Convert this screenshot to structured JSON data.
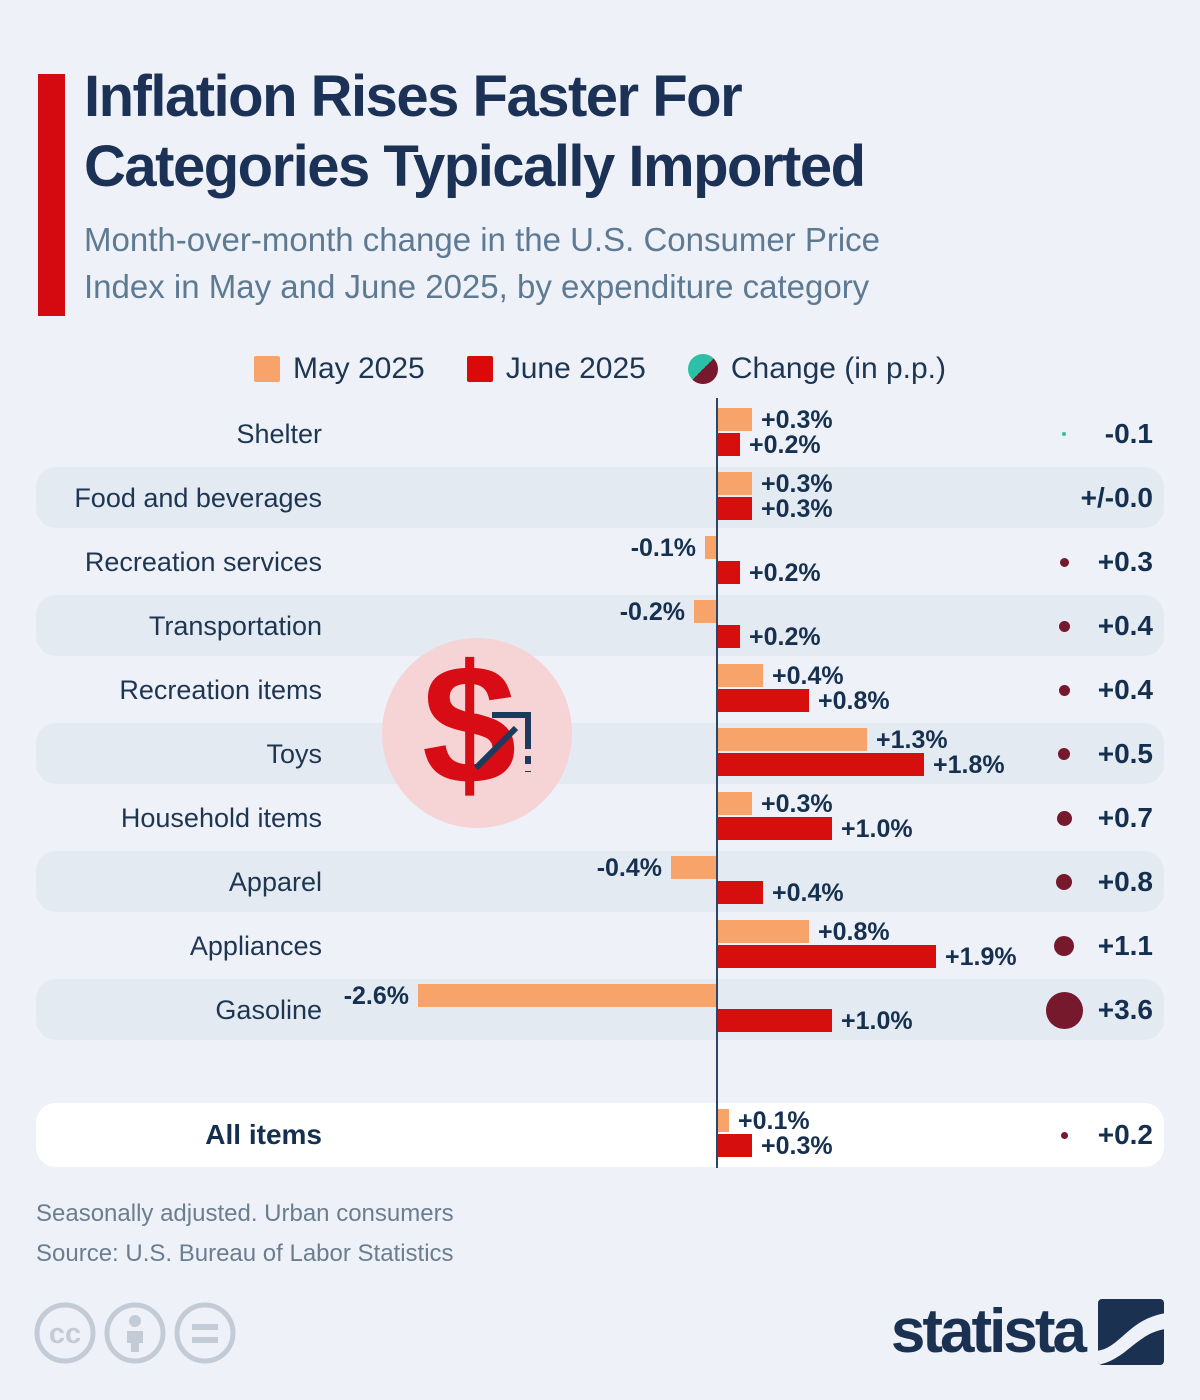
{
  "header": {
    "title_line1": "Inflation Rises Faster For",
    "title_line2": "Categories Typically Imported",
    "subtitle_line1": "Month-over-month change in the U.S. Consumer Price",
    "subtitle_line2": "Index in May and June 2025, by expenditure category"
  },
  "legend": [
    {
      "label": "May 2025",
      "color": "#f7a369",
      "swatch": "square"
    },
    {
      "label": "June 2025",
      "color": "#db0a0a",
      "swatch": "square"
    },
    {
      "label": "Change (in p.p.)",
      "color_negative": "#2cc0a6",
      "color_positive": "#76192c",
      "swatch": "split-circle"
    }
  ],
  "chart_data": {
    "type": "bar",
    "orientation": "horizontal-diverging",
    "unit": "% month-over-month change",
    "series": [
      "May 2025",
      "June 2025"
    ],
    "legend_position": "top-center",
    "x_axis": {
      "zero_line": true,
      "range": [
        -2.8,
        2.0
      ],
      "gridlines": false
    },
    "categories": [
      "Shelter",
      "Food and beverages",
      "Recreation services",
      "Transportation",
      "Recreation items",
      "Toys",
      "Household items",
      "Apparel",
      "Appliances",
      "Gasoline",
      "All items"
    ],
    "rows": [
      {
        "category": "Shelter",
        "may": 0.3,
        "may_label": "+0.3%",
        "june": 0.2,
        "june_label": "+0.2%",
        "change": -0.1,
        "change_label": "-0.1",
        "banded": false,
        "bold": false
      },
      {
        "category": "Food and beverages",
        "may": 0.3,
        "may_label": "+0.3%",
        "june": 0.3,
        "june_label": "+0.3%",
        "change": 0.0,
        "change_label": "+/-0.0",
        "banded": true,
        "bold": false
      },
      {
        "category": "Recreation services",
        "may": -0.1,
        "may_label": "-0.1%",
        "june": 0.2,
        "june_label": "+0.2%",
        "change": 0.3,
        "change_label": "+0.3",
        "banded": false,
        "bold": false
      },
      {
        "category": "Transportation",
        "may": -0.2,
        "may_label": "-0.2%",
        "june": 0.2,
        "june_label": "+0.2%",
        "change": 0.4,
        "change_label": "+0.4",
        "banded": true,
        "bold": false
      },
      {
        "category": "Recreation items",
        "may": 0.4,
        "may_label": "+0.4%",
        "june": 0.8,
        "june_label": "+0.8%",
        "change": 0.4,
        "change_label": "+0.4",
        "banded": false,
        "bold": false
      },
      {
        "category": "Toys",
        "may": 1.3,
        "may_label": "+1.3%",
        "june": 1.8,
        "june_label": "+1.8%",
        "change": 0.5,
        "change_label": "+0.5",
        "banded": true,
        "bold": false
      },
      {
        "category": "Household items",
        "may": 0.3,
        "may_label": "+0.3%",
        "june": 1.0,
        "june_label": "+1.0%",
        "change": 0.7,
        "change_label": "+0.7",
        "banded": false,
        "bold": false
      },
      {
        "category": "Apparel",
        "may": -0.4,
        "may_label": "-0.4%",
        "june": 0.4,
        "june_label": "+0.4%",
        "change": 0.8,
        "change_label": "+0.8",
        "banded": true,
        "bold": false
      },
      {
        "category": "Appliances",
        "may": 0.8,
        "may_label": "+0.8%",
        "june": 1.9,
        "june_label": "+1.9%",
        "change": 1.1,
        "change_label": "+1.1",
        "banded": false,
        "bold": false
      },
      {
        "category": "Gasoline",
        "may": -2.6,
        "may_label": "-2.6%",
        "june": 1.0,
        "june_label": "+1.0%",
        "change": 3.6,
        "change_label": "+3.6",
        "banded": true,
        "bold": false
      },
      {
        "category": "All items",
        "may": 0.1,
        "may_label": "+0.1%",
        "june": 0.3,
        "june_label": "+0.3%",
        "change": 0.2,
        "change_label": "+0.2",
        "banded": "white",
        "bold": true
      }
    ]
  },
  "badge": {
    "symbol": "$"
  },
  "footer": {
    "note": "Seasonally adjusted. Urban consumers",
    "source": "Source: U.S. Bureau of Labor Statistics"
  },
  "branding": {
    "wordmark": "statista"
  },
  "colors": {
    "background": "#eef2f8",
    "row_band": "#e4eaf2",
    "accent_red": "#d40a10",
    "bar_may": "#f7a369",
    "bar_june": "#d60e0e",
    "dot_positive": "#76192c",
    "dot_negative": "#2cc0a6",
    "text_navy": "#1b3155",
    "text_subtitle": "#5e7a93"
  }
}
